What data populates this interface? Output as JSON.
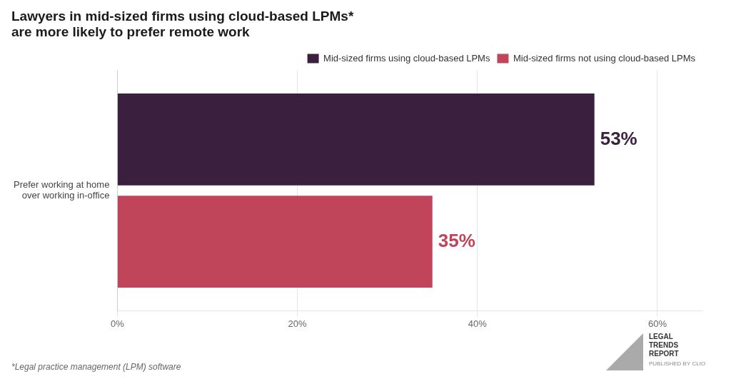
{
  "chart_data": {
    "type": "bar",
    "orientation": "horizontal",
    "title": [
      "Lawyers in mid-sized firms using cloud-based LPMs*",
      "are more likely to prefer remote work"
    ],
    "categories": [
      "Prefer working at home\nover working in-office"
    ],
    "series": [
      {
        "name": "Mid-sized firms using cloud-based LPMs",
        "color": "#3b1f3f",
        "values": [
          53
        ],
        "value_labels": [
          "53%"
        ]
      },
      {
        "name": "Mid-sized firms not using cloud-based LPMs",
        "color": "#c0445a",
        "values": [
          35
        ],
        "value_labels": [
          "35%"
        ]
      }
    ],
    "xlim": [
      0,
      65
    ],
    "xticks": [
      {
        "value": 0,
        "label": "0%"
      },
      {
        "value": 20,
        "label": "20%"
      },
      {
        "value": 40,
        "label": "40%"
      },
      {
        "value": 60,
        "label": "60%"
      }
    ],
    "grid": true,
    "legend": "top right",
    "data_labels": true,
    "annotations": [
      "*Legal practice management (LPM) software",
      "LEGAL\nTRENDS\nREPORT",
      "PUBLISHED BY CLIO"
    ]
  }
}
